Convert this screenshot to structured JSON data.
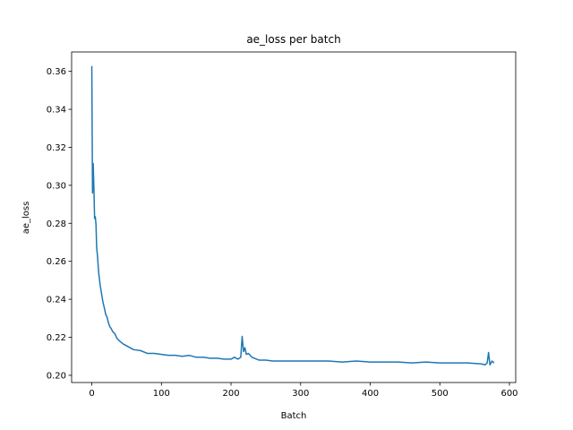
{
  "chart_data": {
    "type": "line",
    "title": "ae_loss per batch",
    "xlabel": "Batch",
    "ylabel": "ae_loss",
    "xlim": [
      -29,
      609
    ],
    "ylim": [
      0.1962,
      0.3702
    ],
    "x_ticks": [
      0,
      100,
      200,
      300,
      400,
      500,
      600
    ],
    "y_ticks": [
      0.2,
      0.22,
      0.24,
      0.26,
      0.28,
      0.3,
      0.32,
      0.34,
      0.36
    ],
    "x_tick_labels": [
      "0",
      "100",
      "200",
      "300",
      "400",
      "500",
      "600"
    ],
    "y_tick_labels": [
      "0.20",
      "0.22",
      "0.24",
      "0.26",
      "0.28",
      "0.30",
      "0.32",
      "0.34",
      "0.36"
    ],
    "grid": false,
    "legend": null,
    "series": [
      {
        "color": "#1f77b4",
        "x": [
          0,
          1,
          2,
          3,
          4,
          5,
          6,
          7,
          8,
          10,
          12,
          14,
          16,
          18,
          20,
          22,
          24,
          26,
          28,
          30,
          33,
          36,
          40,
          45,
          50,
          55,
          60,
          70,
          80,
          90,
          100,
          110,
          120,
          130,
          140,
          150,
          160,
          170,
          180,
          190,
          200,
          205,
          210,
          214,
          216,
          218,
          220,
          222,
          225,
          230,
          240,
          250,
          260,
          280,
          300,
          320,
          340,
          360,
          380,
          400,
          420,
          440,
          460,
          480,
          500,
          520,
          540,
          560,
          565,
          568,
          570,
          572,
          575,
          578
        ],
        "y": [
          0.3628,
          0.296,
          0.3115,
          0.2987,
          0.2825,
          0.2835,
          0.2795,
          0.267,
          0.2635,
          0.2535,
          0.2475,
          0.243,
          0.2385,
          0.2355,
          0.232,
          0.2305,
          0.2275,
          0.2255,
          0.2245,
          0.223,
          0.222,
          0.2195,
          0.218,
          0.2165,
          0.2155,
          0.2145,
          0.2135,
          0.213,
          0.2115,
          0.2115,
          0.211,
          0.2105,
          0.2105,
          0.21,
          0.2105,
          0.2095,
          0.2095,
          0.209,
          0.209,
          0.2085,
          0.2085,
          0.2095,
          0.2085,
          0.2095,
          0.2205,
          0.2125,
          0.2145,
          0.211,
          0.2115,
          0.2095,
          0.208,
          0.208,
          0.2075,
          0.2075,
          0.2075,
          0.2075,
          0.2075,
          0.207,
          0.2075,
          0.207,
          0.207,
          0.207,
          0.2065,
          0.207,
          0.2065,
          0.2065,
          0.2065,
          0.206,
          0.2055,
          0.2065,
          0.212,
          0.2055,
          0.2075,
          0.2065
        ]
      }
    ]
  }
}
